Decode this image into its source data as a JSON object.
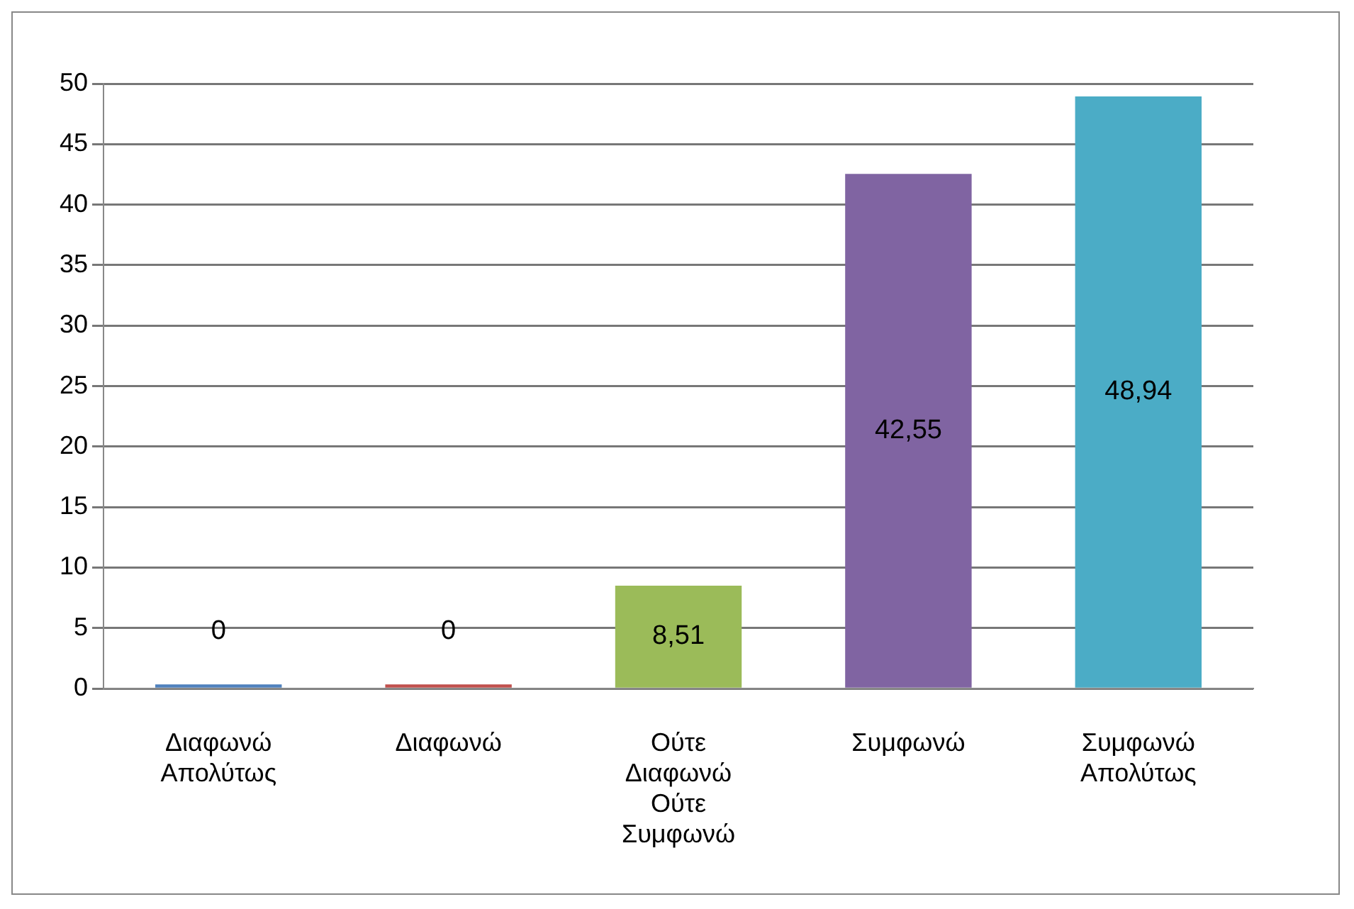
{
  "chart_data": {
    "type": "bar",
    "categories": [
      "Διαφωνώ Απολύτως",
      "Διαφωνώ",
      "Ούτε Διαφωνώ Ούτε Συμφωνώ",
      "Συμφωνώ",
      "Συμφωνώ Απολύτως"
    ],
    "values": [
      0,
      0,
      8.51,
      42.55,
      48.94
    ],
    "colors": [
      "#4f81bd",
      "#c0504d",
      "#9bbb59",
      "#8064a2",
      "#4bacc6"
    ],
    "value_labels": [
      "0",
      "0",
      "8,51",
      "42,55",
      "48,94"
    ],
    "ylim": [
      0,
      50
    ],
    "yticks": [
      0,
      5,
      10,
      15,
      20,
      25,
      30,
      35,
      40,
      45,
      50
    ],
    "grid": "y"
  }
}
